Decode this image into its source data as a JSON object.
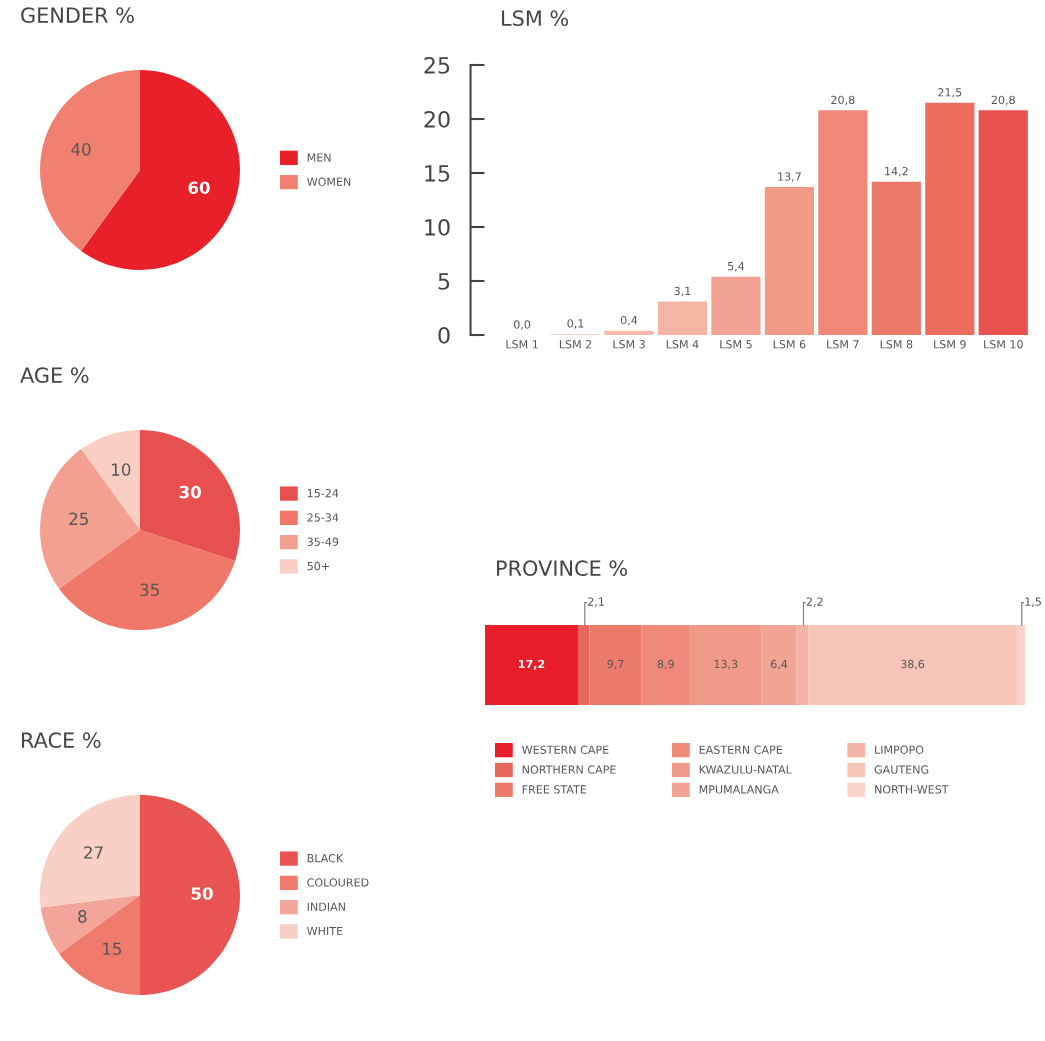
{
  "chart_data": [
    {
      "type": "pie",
      "title": "GENDER %",
      "categories": [
        "MEN",
        "WOMEN"
      ],
      "values": [
        60,
        40
      ],
      "colors": [
        "#e8202a",
        "#f08070"
      ],
      "data_labels": true,
      "legend": "right"
    },
    {
      "type": "bar",
      "title": "LSM %",
      "categories": [
        "LSM 1",
        "LSM 2",
        "LSM 3",
        "LSM 4",
        "LSM 5",
        "LSM 6",
        "LSM 7",
        "LSM 8",
        "LSM 9",
        "LSM 10"
      ],
      "values": [
        0.0,
        0.1,
        0.4,
        3.1,
        5.4,
        13.7,
        20.8,
        14.2,
        21.5,
        20.8
      ],
      "colors": [
        "#fbe0d8",
        "#f9d0c6",
        "#f6b9ab",
        "#f5b5a5",
        "#f3a394",
        "#f19a88",
        "#f08878",
        "#ec7a6a",
        "#ec6c5e",
        "#e8514e"
      ],
      "value_labels": [
        "0,0",
        "0,1",
        "0,4",
        "3,1",
        "5,4",
        "13,7",
        "20,8",
        "14,2",
        "21,5",
        "20,8"
      ],
      "ylim": [
        0,
        25
      ],
      "yticks": [
        0,
        5,
        10,
        15,
        20,
        25
      ],
      "grid": false
    },
    {
      "type": "pie",
      "title": "AGE %",
      "categories": [
        "15-24",
        "25-34",
        "35-49",
        "50+"
      ],
      "values": [
        30,
        35,
        25,
        10
      ],
      "colors": [
        "#e85050",
        "#f07868",
        "#f4a090",
        "#f9cfc4"
      ],
      "data_labels": true,
      "legend": "right"
    },
    {
      "type": "bar",
      "title": "PROVINCE %",
      "orientation": "horizontal",
      "stacked": true,
      "categories": [
        null
      ],
      "tick_labels": false,
      "legend": "bottom",
      "series": [
        {
          "name": "WESTERN CAPE",
          "color": "#e81f2a",
          "values": [
            17.2
          ],
          "value_labels": [
            "17,2"
          ]
        },
        {
          "name": "NORTHERN CAPE",
          "color": "#e8675c",
          "values": [
            2.1
          ],
          "value_labels": [
            "2,1"
          ]
        },
        {
          "name": "FREE STATE",
          "color": "#ed7b6c",
          "values": [
            9.7
          ],
          "value_labels": [
            "9,7"
          ]
        },
        {
          "name": "EASTERN CAPE",
          "color": "#ef8a7a",
          "values": [
            8.9
          ],
          "value_labels": [
            "8,9"
          ]
        },
        {
          "name": "KWAZULU-NATAL",
          "color": "#f29a89",
          "values": [
            13.3
          ],
          "value_labels": [
            "13,3"
          ]
        },
        {
          "name": "MPUMALANGA",
          "color": "#f2a595",
          "values": [
            6.4
          ],
          "value_labels": [
            "6,4"
          ]
        },
        {
          "name": "LIMPOPO",
          "color": "#f5b3a5",
          "values": [
            2.2
          ],
          "value_labels": [
            "2,2"
          ]
        },
        {
          "name": "GAUTENG",
          "color": "#f7c4b8",
          "values": [
            38.6
          ],
          "value_labels": [
            "38,6"
          ]
        },
        {
          "name": "NORTH-WEST",
          "color": "#f9d3ca",
          "values": [
            1.5
          ],
          "value_labels": [
            "1,5"
          ]
        }
      ]
    },
    {
      "type": "pie",
      "title": "RACE %",
      "categories": [
        "BLACK",
        "COLOURED",
        "INDIAN",
        "WHITE"
      ],
      "values": [
        50,
        15,
        8,
        27
      ],
      "colors": [
        "#e85452",
        "#f07b6c",
        "#f2a598",
        "#f8d0c6"
      ],
      "data_labels": true,
      "legend": "right"
    }
  ]
}
